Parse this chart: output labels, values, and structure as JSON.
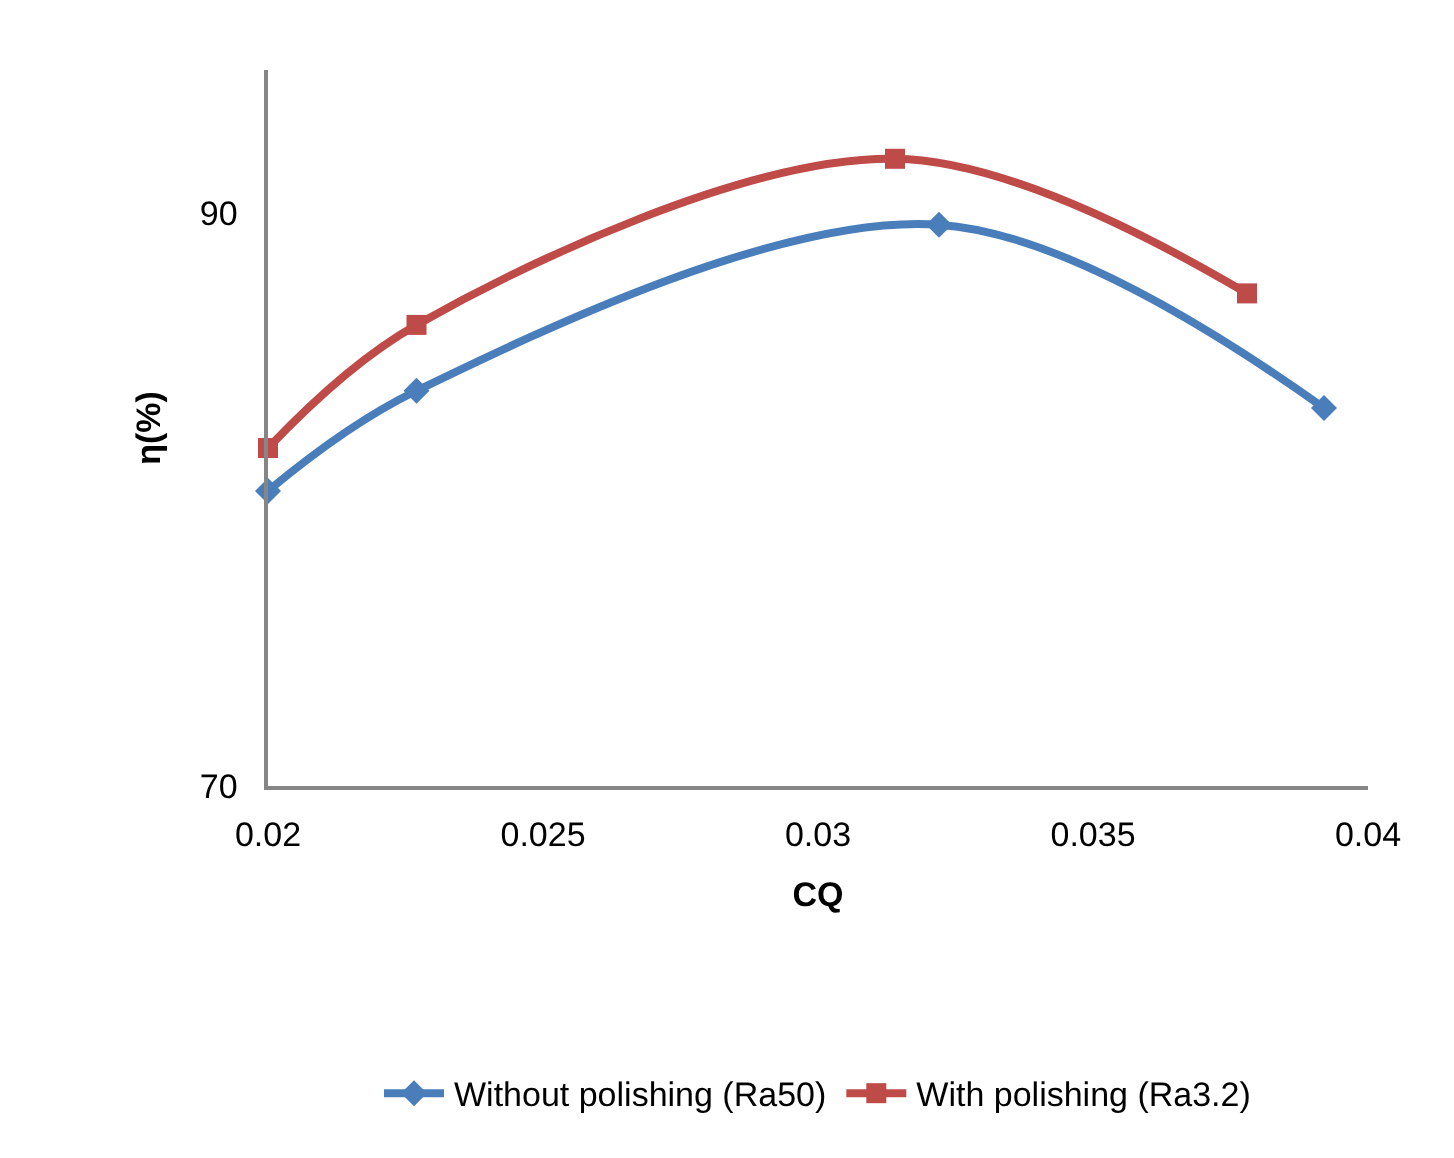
{
  "chart_data": {
    "type": "line",
    "xlabel": "CQ",
    "ylabel": "η(%)",
    "xlim": [
      0.02,
      0.04
    ],
    "xticks": [
      0.02,
      0.025,
      0.03,
      0.035,
      0.04
    ],
    "ylim": [
      70,
      95
    ],
    "yticks": [
      70,
      90
    ],
    "legend": "bottom",
    "line_style": "solid",
    "series": [
      {
        "name": "Without polishing (Ra50)",
        "color": "#4a7ebb",
        "marker": "diamond",
        "x": [
          0.02,
          0.0227,
          0.0322,
          0.0392
        ],
        "values": [
          80.3,
          83.8,
          89.6,
          83.2
        ]
      },
      {
        "name": "With polishing (Ra3.2)",
        "color": "#be4b48",
        "marker": "square",
        "x": [
          0.02,
          0.0227,
          0.0314,
          0.0378
        ],
        "values": [
          81.8,
          86.1,
          91.9,
          87.2
        ]
      }
    ]
  }
}
